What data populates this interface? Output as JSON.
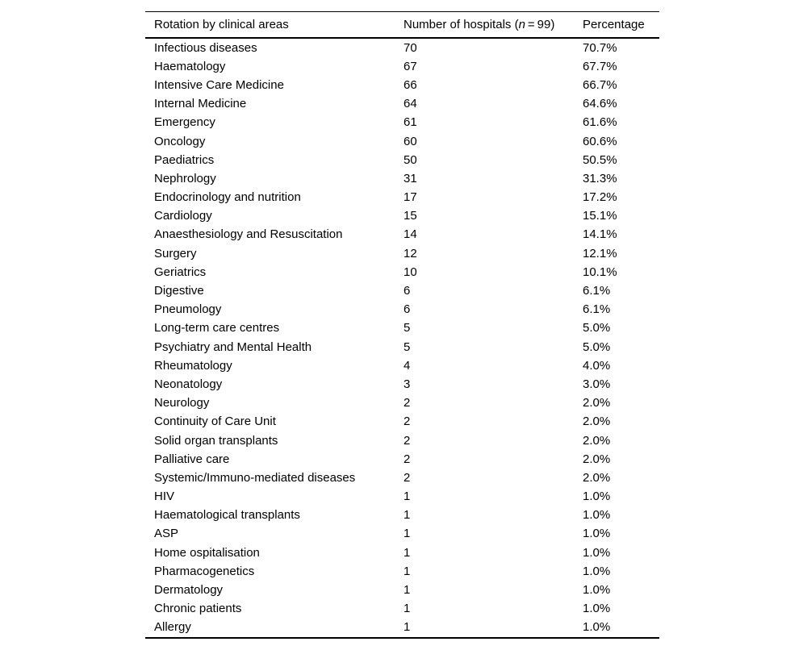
{
  "table": {
    "header": {
      "col1": "Rotation by clinical areas",
      "col2_prefix": "Number of hospitals (",
      "col2_italic": "n",
      "col2_suffix": " = 99)",
      "col3": "Percentage"
    },
    "rows": [
      {
        "area": "Infectious diseases",
        "hospitals": "70",
        "percentage": "70.7%"
      },
      {
        "area": "Haematology",
        "hospitals": "67",
        "percentage": "67.7%"
      },
      {
        "area": "Intensive Care Medicine",
        "hospitals": "66",
        "percentage": "66.7%"
      },
      {
        "area": "Internal Medicine",
        "hospitals": "64",
        "percentage": "64.6%"
      },
      {
        "area": "Emergency",
        "hospitals": "61",
        "percentage": "61.6%"
      },
      {
        "area": "Oncology",
        "hospitals": "60",
        "percentage": "60.6%"
      },
      {
        "area": "Paediatrics",
        "hospitals": "50",
        "percentage": "50.5%"
      },
      {
        "area": "Nephrology",
        "hospitals": "31",
        "percentage": "31.3%"
      },
      {
        "area": "Endocrinology and nutrition",
        "hospitals": "17",
        "percentage": "17.2%"
      },
      {
        "area": "Cardiology",
        "hospitals": "15",
        "percentage": "15.1%"
      },
      {
        "area": "Anaesthesiology and Resuscitation",
        "hospitals": "14",
        "percentage": "14.1%"
      },
      {
        "area": "Surgery",
        "hospitals": "12",
        "percentage": "12.1%"
      },
      {
        "area": "Geriatrics",
        "hospitals": "10",
        "percentage": "10.1%"
      },
      {
        "area": "Digestive",
        "hospitals": "6",
        "percentage": "6.1%"
      },
      {
        "area": "Pneumology",
        "hospitals": "6",
        "percentage": "6.1%"
      },
      {
        "area": "Long-term care centres",
        "hospitals": "5",
        "percentage": "5.0%"
      },
      {
        "area": "Psychiatry and Mental Health",
        "hospitals": "5",
        "percentage": "5.0%"
      },
      {
        "area": "Rheumatology",
        "hospitals": "4",
        "percentage": "4.0%"
      },
      {
        "area": "Neonatology",
        "hospitals": "3",
        "percentage": "3.0%"
      },
      {
        "area": "Neurology",
        "hospitals": "2",
        "percentage": "2.0%"
      },
      {
        "area": "Continuity of Care Unit",
        "hospitals": "2",
        "percentage": "2.0%"
      },
      {
        "area": "Solid organ transplants",
        "hospitals": "2",
        "percentage": "2.0%"
      },
      {
        "area": "Palliative care",
        "hospitals": "2",
        "percentage": "2.0%"
      },
      {
        "area": "Systemic/Immuno-mediated diseases",
        "hospitals": "2",
        "percentage": "2.0%"
      },
      {
        "area": "HIV",
        "hospitals": "1",
        "percentage": "1.0%"
      },
      {
        "area": "Haematological transplants",
        "hospitals": "1",
        "percentage": "1.0%"
      },
      {
        "area": "ASP",
        "hospitals": "1",
        "percentage": "1.0%"
      },
      {
        "area": "Home ospitalisation",
        "hospitals": "1",
        "percentage": "1.0%"
      },
      {
        "area": "Pharmacogenetics",
        "hospitals": "1",
        "percentage": "1.0%"
      },
      {
        "area": "Dermatology",
        "hospitals": "1",
        "percentage": "1.0%"
      },
      {
        "area": "Chronic patients",
        "hospitals": "1",
        "percentage": "1.0%"
      },
      {
        "area": "Allergy",
        "hospitals": "1",
        "percentage": "1.0%"
      }
    ]
  }
}
